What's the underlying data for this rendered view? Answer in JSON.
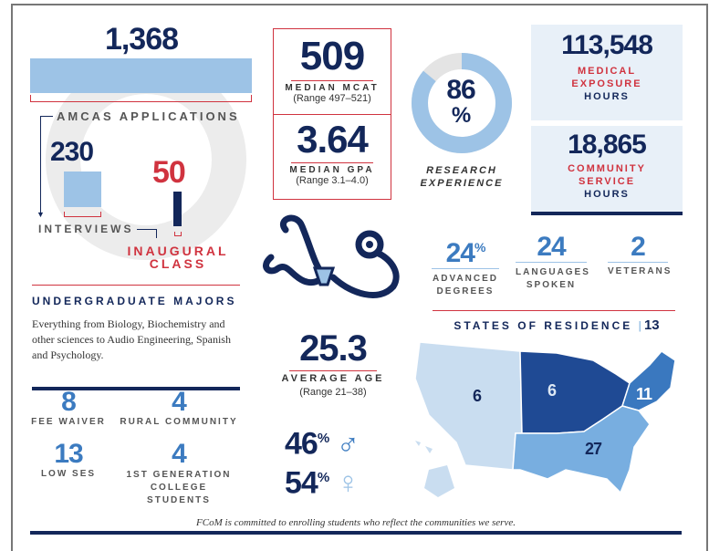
{
  "applications": {
    "value": "1,368",
    "label": "AMCAS APPLICATIONS"
  },
  "interviews": {
    "value": "230",
    "label": "INTERVIEWS"
  },
  "inaugural": {
    "value": "50",
    "label_line1": "INAUGURAL",
    "label_line2": "CLASS"
  },
  "mcat": {
    "value": "509",
    "label": "MEDIAN MCAT",
    "range": "(Range 497–521)"
  },
  "gpa": {
    "value": "3.64",
    "label": "MEDIAN GPA",
    "range": "(Range 3.1–4.0)"
  },
  "research": {
    "value": "86",
    "unit": "%",
    "label_line1": "RESEARCH",
    "label_line2": "EXPERIENCE",
    "percent": 86
  },
  "medical_exposure": {
    "value": "113,548",
    "label_line1": "MEDICAL",
    "label_line2": "EXPOSURE",
    "label_line3": "HOURS"
  },
  "community_service": {
    "value": "18,865",
    "label_line1": "COMMUNITY",
    "label_line2": "SERVICE",
    "label_line3": "HOURS"
  },
  "advanced_degrees": {
    "value": "24",
    "unit": "%",
    "label_line1": "ADVANCED",
    "label_line2": "DEGREES"
  },
  "languages": {
    "value": "24",
    "label_line1": "LANGUAGES",
    "label_line2": "SPOKEN"
  },
  "veterans": {
    "value": "2",
    "label": "VETERANS"
  },
  "majors": {
    "title": "UNDERGRADUATE MAJORS",
    "text": "Everything from Biology, Biochemistry and other sciences to Audio Engineering, Spanish and Psychology."
  },
  "age": {
    "value": "25.3",
    "label": "AVERAGE AGE",
    "range": "(Range 21–38)"
  },
  "gender": {
    "male": "46",
    "female": "54",
    "unit": "%"
  },
  "states": {
    "title": "STATES OF RESIDENCE",
    "count": "13",
    "west": "6",
    "midwest": "6",
    "northeast": "11",
    "south": "27"
  },
  "small_stats": [
    {
      "value": "8",
      "label": "FEE WAIVER"
    },
    {
      "value": "4",
      "label": "RURAL COMMUNITY"
    },
    {
      "value": "13",
      "label": "LOW SES"
    },
    {
      "value": "4",
      "label_line1": "1ST GENERATION",
      "label_line2": "COLLEGE STUDENTS"
    }
  ],
  "footer": "FCoM is committed to enrolling students who reflect the communities we serve.",
  "colors": {
    "navy": "#13275a",
    "red": "#d0333f",
    "light_blue": "#9dc3e6",
    "mid_blue": "#3c7bc0"
  }
}
